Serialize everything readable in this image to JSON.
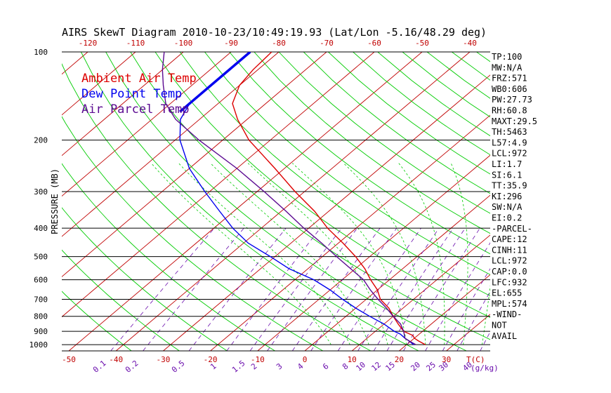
{
  "chart_data": {
    "type": "line",
    "title": "AIRS SkewT Diagram 2010-10-23/10:49:19.93 (Lat/Lon -5.16/48.29 deg)",
    "ylabel": "PRESSURE (MB)",
    "y_scale": "log",
    "ylim": [
      1050,
      100
    ],
    "pressure_ticks": [
      100,
      200,
      300,
      400,
      500,
      600,
      700,
      800,
      900,
      1000
    ],
    "top_temp_ticks": [
      -120,
      -110,
      -100,
      -90,
      -80,
      -70,
      -60,
      -50,
      -40
    ],
    "bottom_temp_ticks": [
      -50,
      -40,
      -30,
      -20,
      -10,
      0,
      10,
      20,
      30
    ],
    "bottom_temp_unit": "T(C)",
    "mixing_ratio_labels": [
      "0.1",
      "0.2",
      "0.5",
      "1",
      "1.5",
      "2",
      "3",
      "4",
      "6",
      "8",
      "10",
      "12",
      "15",
      "20",
      "25",
      "30",
      "40"
    ],
    "mixing_ratio_unit": "(g/kg)",
    "grid": true,
    "legend_position": "top-left",
    "series": [
      {
        "name": "Ambient Air Temp",
        "color": "#dd0000",
        "p": [
          1000,
          970,
          950,
          930,
          900,
          850,
          800,
          750,
          700,
          650,
          600,
          550,
          500,
          450,
          400,
          350,
          300,
          250,
          200,
          170,
          150,
          130,
          115,
          100
        ],
        "t": [
          24.0,
          21.5,
          20.0,
          19.0,
          16.0,
          13.0,
          10.0,
          7.0,
          3.0,
          0.0,
          -4.0,
          -8.0,
          -13.0,
          -19.0,
          -26.0,
          -33.0,
          -42.0,
          -52.0,
          -64.5,
          -72.0,
          -77.0,
          -80.0,
          -81.0,
          -81.5
        ]
      },
      {
        "name": "Dew Point Temp",
        "color": "#0000ee",
        "p": [
          1000,
          970,
          950,
          920,
          900,
          850,
          800,
          750,
          700,
          650,
          600,
          550,
          500,
          450,
          400,
          350,
          300,
          250,
          200,
          170,
          150
        ],
        "t": [
          21.5,
          19.5,
          18.0,
          16.0,
          14.0,
          10.0,
          5.0,
          0.0,
          -5.0,
          -10.0,
          -16.0,
          -24.0,
          -31.0,
          -39.0,
          -46.0,
          -53.0,
          -61.0,
          -70.0,
          -79.0,
          -84.0,
          -86.0
        ]
      },
      {
        "name": "Air Parcel Temp",
        "color": "#5b0a91",
        "p": [
          1000,
          970,
          950,
          900,
          850,
          800,
          750,
          700,
          650,
          600,
          550,
          500,
          450,
          400,
          350,
          300,
          250,
          200,
          170,
          150,
          130,
          115,
          100
        ],
        "t": [
          22.0,
          19.5,
          18.0,
          16.0,
          13.5,
          10.0,
          6.5,
          2.5,
          -1.5,
          -5.5,
          -11.0,
          -17.0,
          -23.5,
          -31.0,
          -39.0,
          -48.5,
          -60.0,
          -75.0,
          -85.0,
          -91.0,
          -96.0,
          -100.0,
          -104.0
        ]
      }
    ],
    "tropopause_segment": {
      "color": "#0000ee",
      "p": [
        100,
        160
      ],
      "t": -86
    }
  },
  "indices": [
    "TP:100",
    "MW:N/A",
    "FRZ:571",
    "WB0:606",
    "PW:27.73",
    "RH:60.8",
    "MAXT:29.5",
    "TH:5463",
    "L57:4.9",
    "LCL:972",
    "LI:1.7",
    "SI:6.1",
    "TT:35.9",
    "KI:296",
    "SW:N/A",
    "EI:0.2",
    "-PARCEL-",
    "CAPE:12",
    "CINH:11",
    "LCL:972",
    "CAP:0.0",
    "LFC:932",
    "EL:655",
    "MPL:574",
    "-WIND-",
    "NOT",
    "AVAIL"
  ],
  "colors": {
    "isotherm": "#c00000",
    "dry_adiabat": "#00cc00",
    "moist_adiabat": "#00cc00",
    "mixing_ratio": "#6a0dad",
    "axis": "#000000"
  }
}
